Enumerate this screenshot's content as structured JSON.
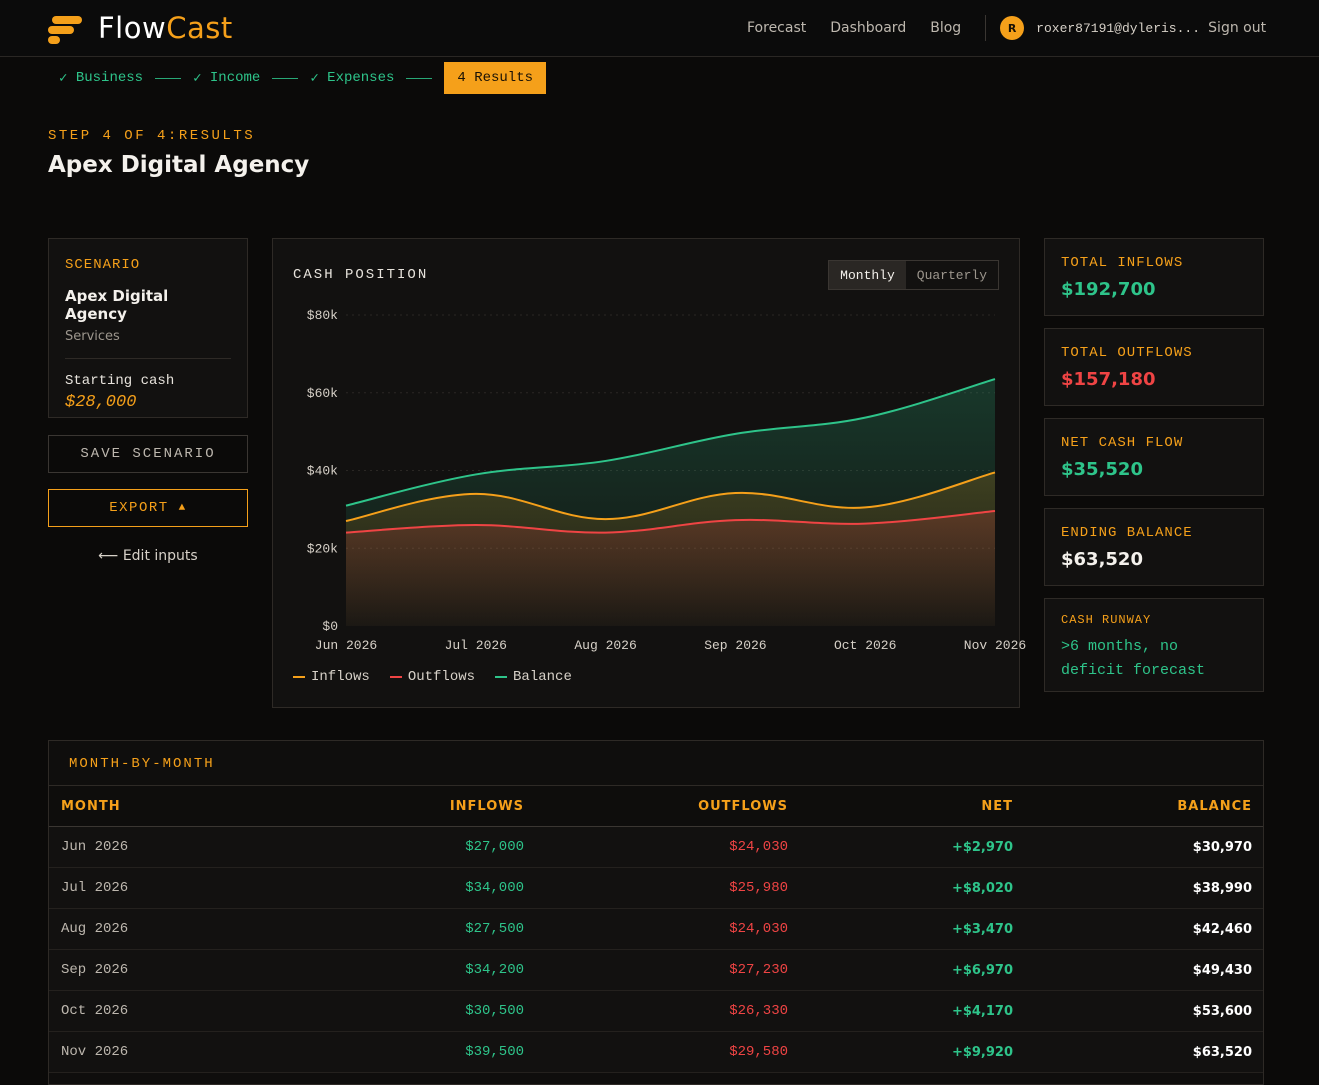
{
  "brand": {
    "name_part1": "Flow",
    "name_part2": "Cast"
  },
  "nav": {
    "links": [
      "Forecast",
      "Dashboard",
      "Blog"
    ],
    "avatar_initial": "R",
    "user_email": "roxer87191@dyleris...",
    "signout": "Sign out"
  },
  "steps": {
    "done": [
      "Business",
      "Income",
      "Expenses"
    ],
    "check": "✓",
    "current": "4 Results"
  },
  "page": {
    "eyebrow": "STEP 4 OF 4:RESULTS",
    "title": "Apex Digital Agency"
  },
  "scenario": {
    "label": "SCENARIO",
    "name": "Apex Digital Agency",
    "type": "Services",
    "starting_cash_label": "Starting cash",
    "starting_cash_value": "$28,000"
  },
  "actions": {
    "save": "SAVE SCENARIO",
    "export": "EXPORT",
    "export_icon": "▲",
    "edit_inputs": "⟵ Edit inputs"
  },
  "chart_panel": {
    "title": "CASH POSITION",
    "toggle": {
      "active": "Monthly",
      "inactive": "Quarterly"
    }
  },
  "chart_data": {
    "type": "area",
    "categories": [
      "Jun 2026",
      "Jul 2026",
      "Aug 2026",
      "Sep 2026",
      "Oct 2026",
      "Nov 2026"
    ],
    "series": [
      {
        "name": "Inflows",
        "color": "#f5a01a",
        "values": [
          27000,
          34000,
          27500,
          34200,
          30500,
          39500
        ]
      },
      {
        "name": "Outflows",
        "color": "#ef4444",
        "values": [
          24030,
          25980,
          24030,
          27230,
          26330,
          29580
        ]
      },
      {
        "name": "Balance",
        "color": "#2ec48a",
        "values": [
          30970,
          38990,
          42460,
          49430,
          53600,
          63520
        ]
      }
    ],
    "y_ticks": [
      "$0",
      "$20k",
      "$40k",
      "$60k",
      "$80k"
    ],
    "y_tick_values": [
      0,
      20000,
      40000,
      60000,
      80000
    ],
    "ylim": [
      0,
      80000
    ],
    "grid": true,
    "legend_position": "bottom-left"
  },
  "stats": {
    "total_inflows": {
      "label": "TOTAL INFLOWS",
      "value": "$192,700"
    },
    "total_outflows": {
      "label": "TOTAL OUTFLOWS",
      "value": "$157,180"
    },
    "net_cash_flow": {
      "label": "NET CASH FLOW",
      "value": "$35,520"
    },
    "ending_balance": {
      "label": "ENDING BALANCE",
      "value": "$63,520"
    },
    "cash_runway": {
      "label": "CASH RUNWAY",
      "line1": ">6 months, no",
      "line2": "deficit forecast"
    }
  },
  "table": {
    "title": "MONTH-BY-MONTH",
    "headers": [
      "MONTH",
      "INFLOWS",
      "OUTFLOWS",
      "NET",
      "BALANCE"
    ],
    "rows": [
      {
        "month": "Jun 2026",
        "inflows": "$27,000",
        "outflows": "$24,030",
        "net": "+$2,970",
        "balance": "$30,970"
      },
      {
        "month": "Jul 2026",
        "inflows": "$34,000",
        "outflows": "$25,980",
        "net": "+$8,020",
        "balance": "$38,990"
      },
      {
        "month": "Aug 2026",
        "inflows": "$27,500",
        "outflows": "$24,030",
        "net": "+$3,470",
        "balance": "$42,460"
      },
      {
        "month": "Sep 2026",
        "inflows": "$34,200",
        "outflows": "$27,230",
        "net": "+$6,970",
        "balance": "$49,430"
      },
      {
        "month": "Oct 2026",
        "inflows": "$30,500",
        "outflows": "$26,330",
        "net": "+$4,170",
        "balance": "$53,600"
      },
      {
        "month": "Nov 2026",
        "inflows": "$39,500",
        "outflows": "$29,580",
        "net": "+$9,920",
        "balance": "$63,520"
      }
    ]
  }
}
